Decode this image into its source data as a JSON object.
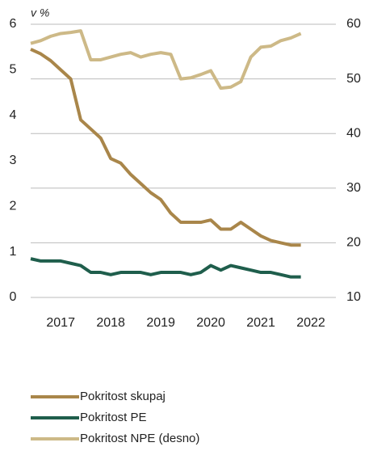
{
  "chart_data": {
    "type": "line",
    "y_unit_label": "v %",
    "x": [
      2016.4,
      2016.6,
      2016.8,
      2017.0,
      2017.2,
      2017.4,
      2017.6,
      2017.8,
      2018.0,
      2018.2,
      2018.4,
      2018.6,
      2018.8,
      2019.0,
      2019.2,
      2019.4,
      2019.6,
      2019.8,
      2020.0,
      2020.2,
      2020.4,
      2020.6,
      2020.8,
      2021.0,
      2021.2,
      2021.4,
      2021.6,
      2021.8
    ],
    "xlim": [
      2016.4,
      2022.5
    ],
    "xticks": [
      2017,
      2018,
      2019,
      2020,
      2021,
      2022
    ],
    "ylim": [
      0,
      6
    ],
    "yticks": [
      0,
      1,
      2,
      3,
      4,
      5,
      6
    ],
    "y2lim": [
      10,
      60
    ],
    "y2ticks": [
      10,
      20,
      30,
      40,
      50,
      60
    ],
    "grid": true,
    "legend": "bottom",
    "series": [
      {
        "name": "Pokritost skupaj",
        "color": "#a9864a",
        "values": [
          5.45,
          5.35,
          5.2,
          5.0,
          4.8,
          3.9,
          3.7,
          3.5,
          3.05,
          2.95,
          2.7,
          2.5,
          2.3,
          2.15,
          1.85,
          1.65,
          1.65,
          1.65,
          1.7,
          1.5,
          1.5,
          1.65,
          1.5,
          1.35,
          1.25,
          1.2,
          1.15,
          1.15
        ]
      },
      {
        "name": "Pokritost PE",
        "color": "#1f5e4c",
        "values": [
          0.85,
          0.8,
          0.8,
          0.8,
          0.75,
          0.7,
          0.55,
          0.55,
          0.5,
          0.55,
          0.55,
          0.55,
          0.5,
          0.55,
          0.55,
          0.55,
          0.5,
          0.55,
          0.7,
          0.6,
          0.7,
          0.65,
          0.6,
          0.55,
          0.55,
          0.5,
          0.45,
          0.45
        ]
      },
      {
        "name": "Pokritost NPE (desno)",
        "color": "#cdb987",
        "axis": "y2",
        "values": [
          56.5,
          57,
          57.8,
          58.3,
          58.5,
          58.8,
          53.5,
          53.5,
          54,
          54.5,
          54.8,
          54,
          54.5,
          54.8,
          54.5,
          50,
          50.2,
          50.8,
          51.5,
          48.3,
          48.5,
          49.5,
          54,
          55.8,
          56,
          57,
          57.5,
          58.3
        ]
      }
    ]
  }
}
